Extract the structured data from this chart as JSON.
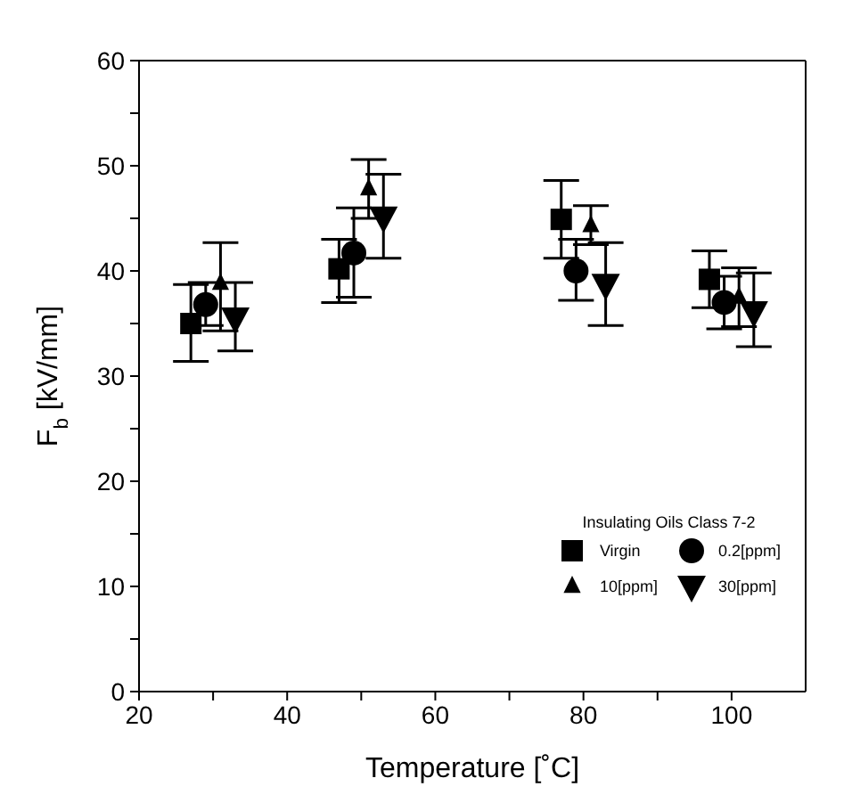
{
  "chart_data": {
    "type": "scatter",
    "xlabel": "Temperature [˚C]",
    "ylabel": "F$_{b}$ [kV/mm]",
    "legend_title": "Insulating Oils Class 7-2",
    "legend": "bottom right",
    "grid": false,
    "xlim": [
      20,
      110
    ],
    "xticks": [
      20,
      {
        "value": 30,
        "label": null
      },
      40,
      {
        "value": 50,
        "label": null
      },
      60,
      {
        "value": 70,
        "label": null
      },
      80,
      {
        "value": 90,
        "label": null
      },
      100
    ],
    "ylim": [
      0,
      60
    ],
    "yticks": [
      0,
      {
        "value": 5,
        "label": null
      },
      10,
      {
        "value": 15,
        "label": null
      },
      20,
      {
        "value": 25,
        "label": null
      },
      30,
      {
        "value": 35,
        "label": null
      },
      40,
      {
        "value": 45,
        "label": null
      },
      50,
      {
        "value": 55,
        "label": null
      },
      60
    ],
    "series": [
      {
        "name": "Virgin",
        "color": "#000000",
        "marker": "square",
        "x": [
          27,
          47,
          77,
          97
        ],
        "values": [
          35,
          40.2,
          44.9,
          39.2
        ],
        "errors": [
          [
            31.4,
            38.7
          ],
          [
            37,
            43
          ],
          [
            41.2,
            48.6
          ],
          [
            36.5,
            41.9
          ]
        ]
      },
      {
        "name": "0.2[ppm]",
        "color": "#000000",
        "marker": "circle",
        "x": [
          29,
          49,
          79,
          99
        ],
        "values": [
          36.8,
          41.7,
          40,
          37
        ],
        "errors": [
          [
            34.8,
            38.9
          ],
          [
            37.5,
            46
          ],
          [
            37.2,
            43
          ],
          [
            34.5,
            39.5
          ]
        ]
      },
      {
        "name": "10[ppm]",
        "color": "#000000",
        "marker": "triangle",
        "x": [
          31,
          51,
          81,
          101
        ],
        "values": [
          38.8,
          47.8,
          44.3,
          37.5
        ],
        "errors": [
          [
            34.3,
            42.7
          ],
          [
            45,
            50.6
          ],
          [
            42.5,
            46.2
          ],
          [
            34.7,
            40.3
          ]
        ]
      },
      {
        "name": "30[ppm]",
        "color": "#000000",
        "marker": "triangle-down",
        "x": [
          33,
          53,
          83,
          103
        ],
        "values": [
          35.5,
          45.1,
          38.7,
          36.1
        ],
        "errors": [
          [
            32.4,
            38.9
          ],
          [
            41.2,
            49.2
          ],
          [
            34.8,
            42.7
          ],
          [
            32.8,
            39.8
          ]
        ]
      }
    ]
  }
}
